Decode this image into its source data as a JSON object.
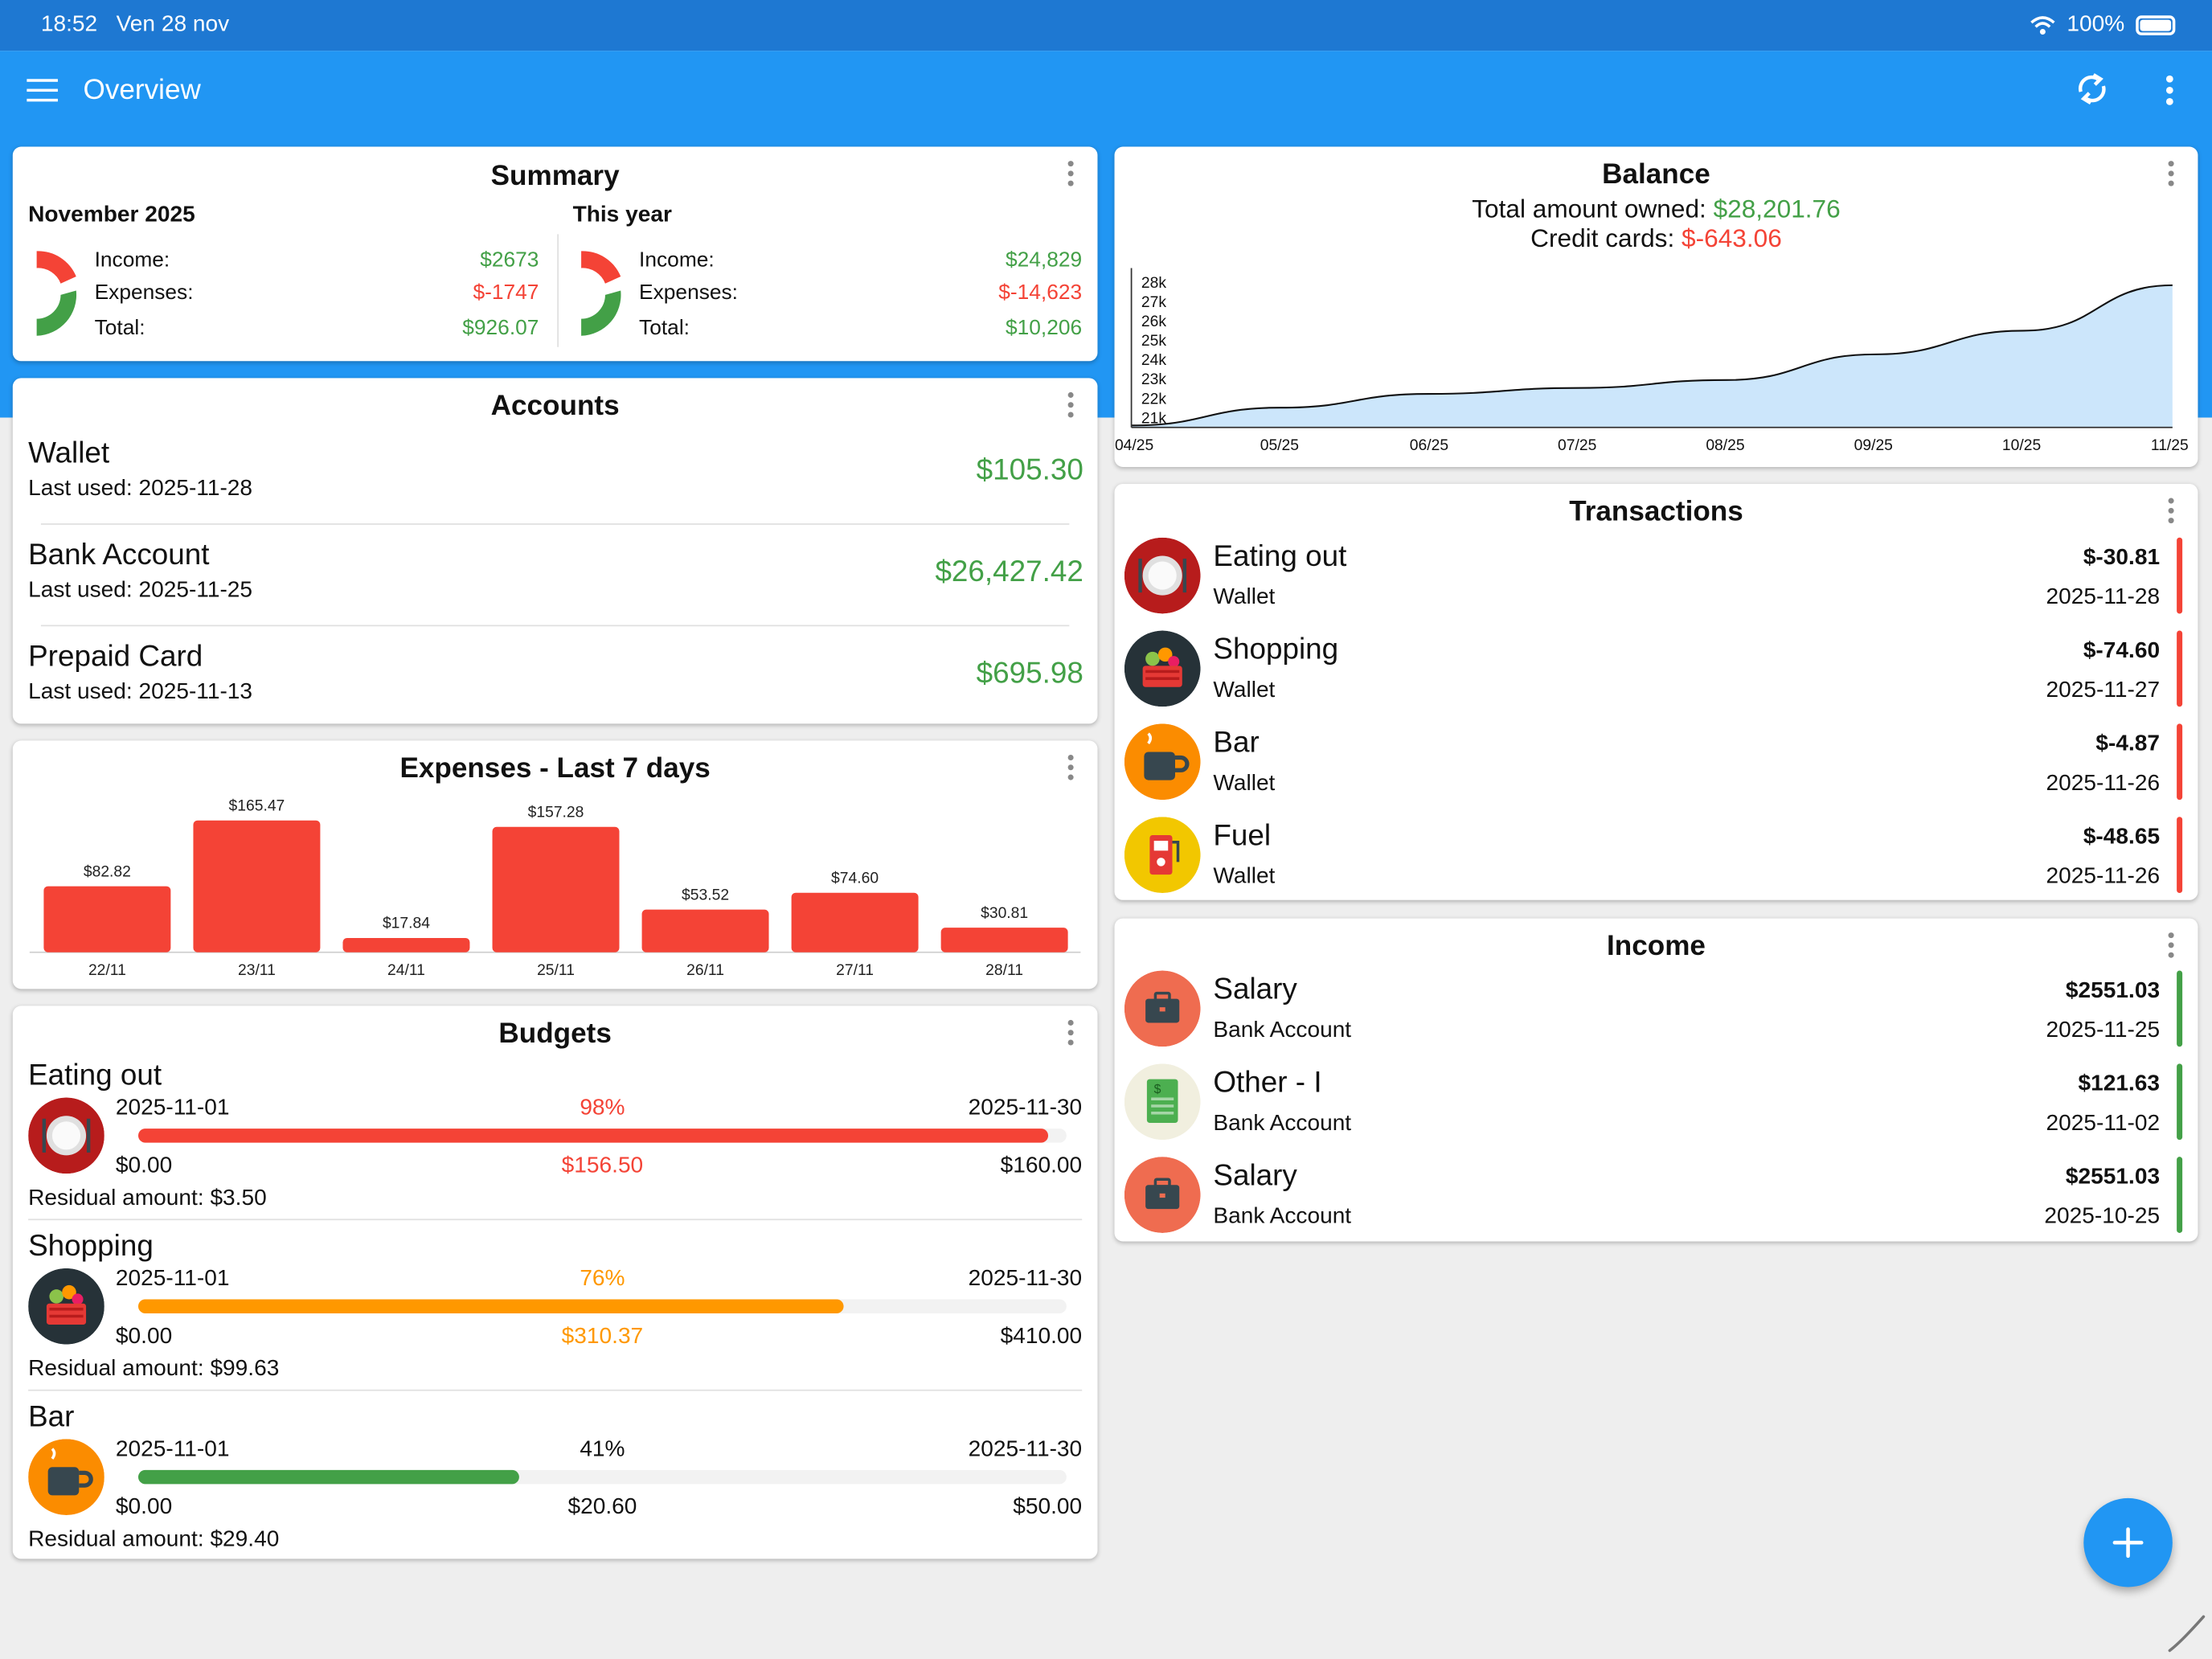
{
  "status": {
    "time": "18:52",
    "date": "Ven 28 nov",
    "battery": "100%"
  },
  "appbar": {
    "title": "Overview"
  },
  "summary": {
    "title": "Summary",
    "month": {
      "heading": "November 2025",
      "income_label": "Income:",
      "income": "$2673",
      "expenses_label": "Expenses:",
      "expenses": "$-1747",
      "total_label": "Total:",
      "total": "$926.07"
    },
    "year": {
      "heading": "This year",
      "income_label": "Income:",
      "income": "$24,829",
      "expenses_label": "Expenses:",
      "expenses": "$-14,623",
      "total_label": "Total:",
      "total": "$10,206"
    }
  },
  "accounts": {
    "title": "Accounts",
    "items": [
      {
        "name": "Wallet",
        "last_used": "Last used: 2025-11-28",
        "amount": "$105.30"
      },
      {
        "name": "Bank Account",
        "last_used": "Last used: 2025-11-25",
        "amount": "$26,427.42"
      },
      {
        "name": "Prepaid Card",
        "last_used": "Last used: 2025-11-13",
        "amount": "$695.98"
      }
    ]
  },
  "expenses7": {
    "title": "Expenses - Last 7 days"
  },
  "chart_data": [
    {
      "type": "bar",
      "title": "Expenses - Last 7 days",
      "categories": [
        "22/11",
        "23/11",
        "24/11",
        "25/11",
        "26/11",
        "27/11",
        "28/11"
      ],
      "values": [
        82.82,
        165.47,
        17.84,
        157.28,
        53.52,
        74.6,
        30.81
      ],
      "value_labels": [
        "$82.82",
        "$165.47",
        "$17.84",
        "$157.28",
        "$53.52",
        "$74.60",
        "$30.81"
      ],
      "ylim": [
        0,
        170
      ],
      "color": "#f44336"
    },
    {
      "type": "area",
      "title": "Balance",
      "x": [
        "04/25",
        "05/25",
        "06/25",
        "07/25",
        "08/25",
        "09/25",
        "10/25",
        "11/25"
      ],
      "y": [
        21100,
        22000,
        22700,
        23000,
        23400,
        24700,
        25900,
        28200
      ],
      "y_ticks": [
        "28k",
        "27k",
        "26k",
        "25k",
        "24k",
        "23k",
        "22k",
        "21k"
      ],
      "ylim": [
        21000,
        28500
      ],
      "color": "#cce6fb"
    }
  ],
  "budgets": {
    "title": "Budgets",
    "items": [
      {
        "name": "Eating out",
        "start": "2025-11-01",
        "end": "2025-11-30",
        "percent": "98%",
        "progress": 0.98,
        "min": "$0.00",
        "spent": "$156.50",
        "max": "$160.00",
        "residual": "Residual amount: $3.50",
        "color": "#f44336",
        "icon": "plate-icon"
      },
      {
        "name": "Shopping",
        "start": "2025-11-01",
        "end": "2025-11-30",
        "percent": "76%",
        "progress": 0.76,
        "min": "$0.00",
        "spent": "$310.37",
        "max": "$410.00",
        "residual": "Residual amount: $99.63",
        "color": "#ff9800",
        "icon": "basket-icon"
      },
      {
        "name": "Bar",
        "start": "2025-11-01",
        "end": "2025-11-30",
        "percent": "41%",
        "progress": 0.41,
        "min": "$0.00",
        "spent": "$20.60",
        "max": "$50.00",
        "residual": "Residual amount: $29.40",
        "color": "#43a047",
        "icon": "cup-icon"
      }
    ]
  },
  "balance": {
    "title": "Balance",
    "owned_label": "Total amount owned: ",
    "owned": "$28,201.76",
    "credit_label": "Credit cards: ",
    "credit": "$-643.06"
  },
  "transactions": {
    "title": "Transactions",
    "items": [
      {
        "name": "Eating out",
        "account": "Wallet",
        "amount": "$-30.81",
        "date": "2025-11-28",
        "icon": "plate-icon"
      },
      {
        "name": "Shopping",
        "account": "Wallet",
        "amount": "$-74.60",
        "date": "2025-11-27",
        "icon": "basket-icon"
      },
      {
        "name": "Bar",
        "account": "Wallet",
        "amount": "$-4.87",
        "date": "2025-11-26",
        "icon": "cup-icon"
      },
      {
        "name": "Fuel",
        "account": "Wallet",
        "amount": "$-48.65",
        "date": "2025-11-26",
        "icon": "fuel-icon"
      }
    ]
  },
  "income": {
    "title": "Income",
    "items": [
      {
        "name": "Salary",
        "account": "Bank Account",
        "amount": "$2551.03",
        "date": "2025-11-25",
        "icon": "briefcase-icon"
      },
      {
        "name": "Other - I",
        "account": "Bank Account",
        "amount": "$121.63",
        "date": "2025-11-02",
        "icon": "document-icon"
      },
      {
        "name": "Salary",
        "account": "Bank Account",
        "amount": "$2551.03",
        "date": "2025-10-25",
        "icon": "briefcase-icon"
      }
    ]
  },
  "colors": {
    "primary": "#2196f3",
    "status_bar": "#1e78d2",
    "income": "#43a047",
    "expense": "#f44336",
    "warning": "#ff9800"
  }
}
